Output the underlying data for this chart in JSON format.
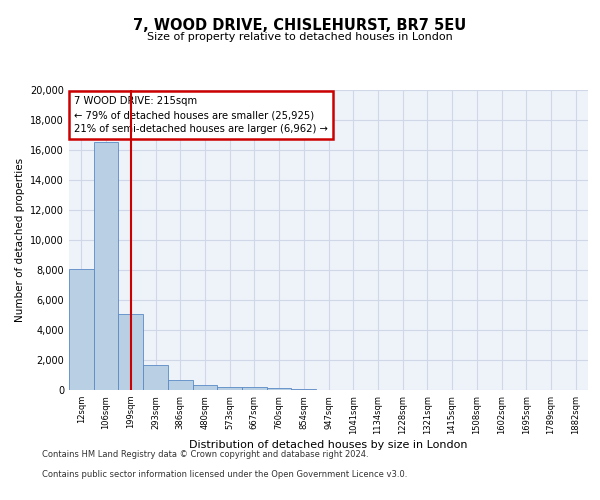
{
  "title1": "7, WOOD DRIVE, CHISLEHURST, BR7 5EU",
  "title2": "Size of property relative to detached houses in London",
  "xlabel": "Distribution of detached houses by size in London",
  "ylabel": "Number of detached properties",
  "categories": [
    "12sqm",
    "106sqm",
    "199sqm",
    "293sqm",
    "386sqm",
    "480sqm",
    "573sqm",
    "667sqm",
    "760sqm",
    "854sqm",
    "947sqm",
    "1041sqm",
    "1134sqm",
    "1228sqm",
    "1321sqm",
    "1415sqm",
    "1508sqm",
    "1602sqm",
    "1695sqm",
    "1789sqm",
    "1882sqm"
  ],
  "values": [
    8050,
    16500,
    5100,
    1700,
    650,
    350,
    230,
    170,
    130,
    90,
    0,
    0,
    0,
    0,
    0,
    0,
    0,
    0,
    0,
    0,
    0
  ],
  "bar_color": "#b8cfe4",
  "bar_edge_color": "#5a8ac6",
  "vline_x": 2,
  "vline_color": "#cc0000",
  "annotation_line1": "7 WOOD DRIVE: 215sqm",
  "annotation_line2": "← 79% of detached houses are smaller (25,925)",
  "annotation_line3": "21% of semi-detached houses are larger (6,962) →",
  "annotation_box_color": "#ffffff",
  "annotation_box_edge": "#cc0000",
  "ylim": [
    0,
    20000
  ],
  "yticks": [
    0,
    2000,
    4000,
    6000,
    8000,
    10000,
    12000,
    14000,
    16000,
    18000,
    20000
  ],
  "grid_color": "#d0d8e8",
  "footer1": "Contains HM Land Registry data © Crown copyright and database right 2024.",
  "footer2": "Contains public sector information licensed under the Open Government Licence v3.0.",
  "fig_bg": "#ffffff",
  "ax_bg": "#eef2f9"
}
